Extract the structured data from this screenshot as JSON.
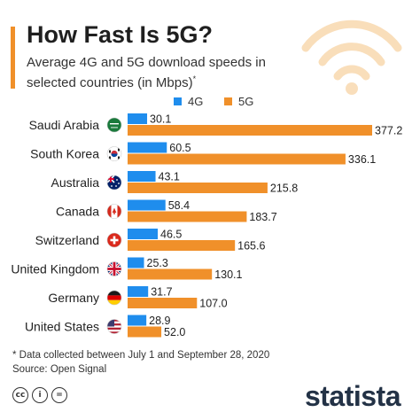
{
  "header": {
    "title": "How Fast Is 5G?",
    "subtitle": "Average 4G and 5G download speeds in selected countries (in Mbps)",
    "subtitle_mark": "*"
  },
  "footnote": {
    "line1": "* Data collected between July 1 and September 28, 2020",
    "line2": "Source: Open Signal"
  },
  "footer": {
    "brand": "statista",
    "license_icons": [
      "cc-icon",
      "by-icon",
      "nd-icon"
    ]
  },
  "colors": {
    "series_4g": "#1f8ded",
    "series_5g": "#f0902a",
    "accent": "#f0902a",
    "brand": "#233246"
  },
  "chart_data": {
    "type": "bar",
    "orientation": "horizontal",
    "title": "How Fast Is 5G?",
    "categories": [
      "Saudi Arabia",
      "South Korea",
      "Australia",
      "Canada",
      "Switzerland",
      "United Kingdom",
      "Germany",
      "United States"
    ],
    "flags": [
      "saudi-arabia-flag-icon",
      "south-korea-flag-icon",
      "australia-flag-icon",
      "canada-flag-icon",
      "switzerland-flag-icon",
      "united-kingdom-flag-icon",
      "germany-flag-icon",
      "united-states-flag-icon"
    ],
    "series": [
      {
        "name": "4G",
        "color": "#1f8ded",
        "values": [
          30.1,
          60.5,
          43.1,
          58.4,
          46.5,
          25.3,
          31.7,
          28.9
        ]
      },
      {
        "name": "5G",
        "color": "#f0902a",
        "values": [
          377.2,
          336.1,
          215.8,
          183.7,
          165.6,
          130.1,
          107.0,
          52.0
        ]
      }
    ],
    "xlim": [
      0,
      377.2
    ],
    "legend": "top",
    "grid": false
  }
}
